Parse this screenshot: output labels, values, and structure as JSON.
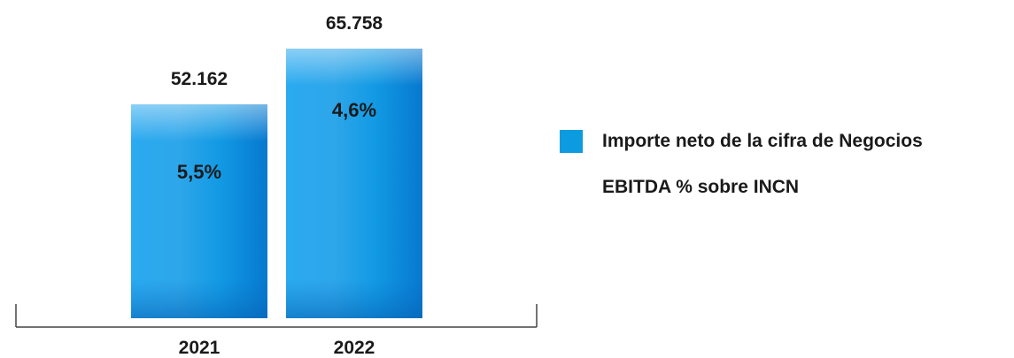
{
  "chart_data": {
    "type": "bar",
    "categories": [
      "2021",
      "2022"
    ],
    "series": [
      {
        "name": "Importe neto de la cifra de Negocios",
        "values": [
          52162,
          65758
        ],
        "value_labels": [
          "52.162",
          "65.758"
        ],
        "color": "#0d9be0"
      },
      {
        "name": "EBITDA % sobre INCN",
        "values": [
          5.5,
          4.6
        ],
        "value_labels": [
          "5,5%",
          "4,6%"
        ],
        "color": ""
      }
    ],
    "ylim": [
      0,
      65758
    ],
    "grid": false,
    "legend_position": "right"
  }
}
